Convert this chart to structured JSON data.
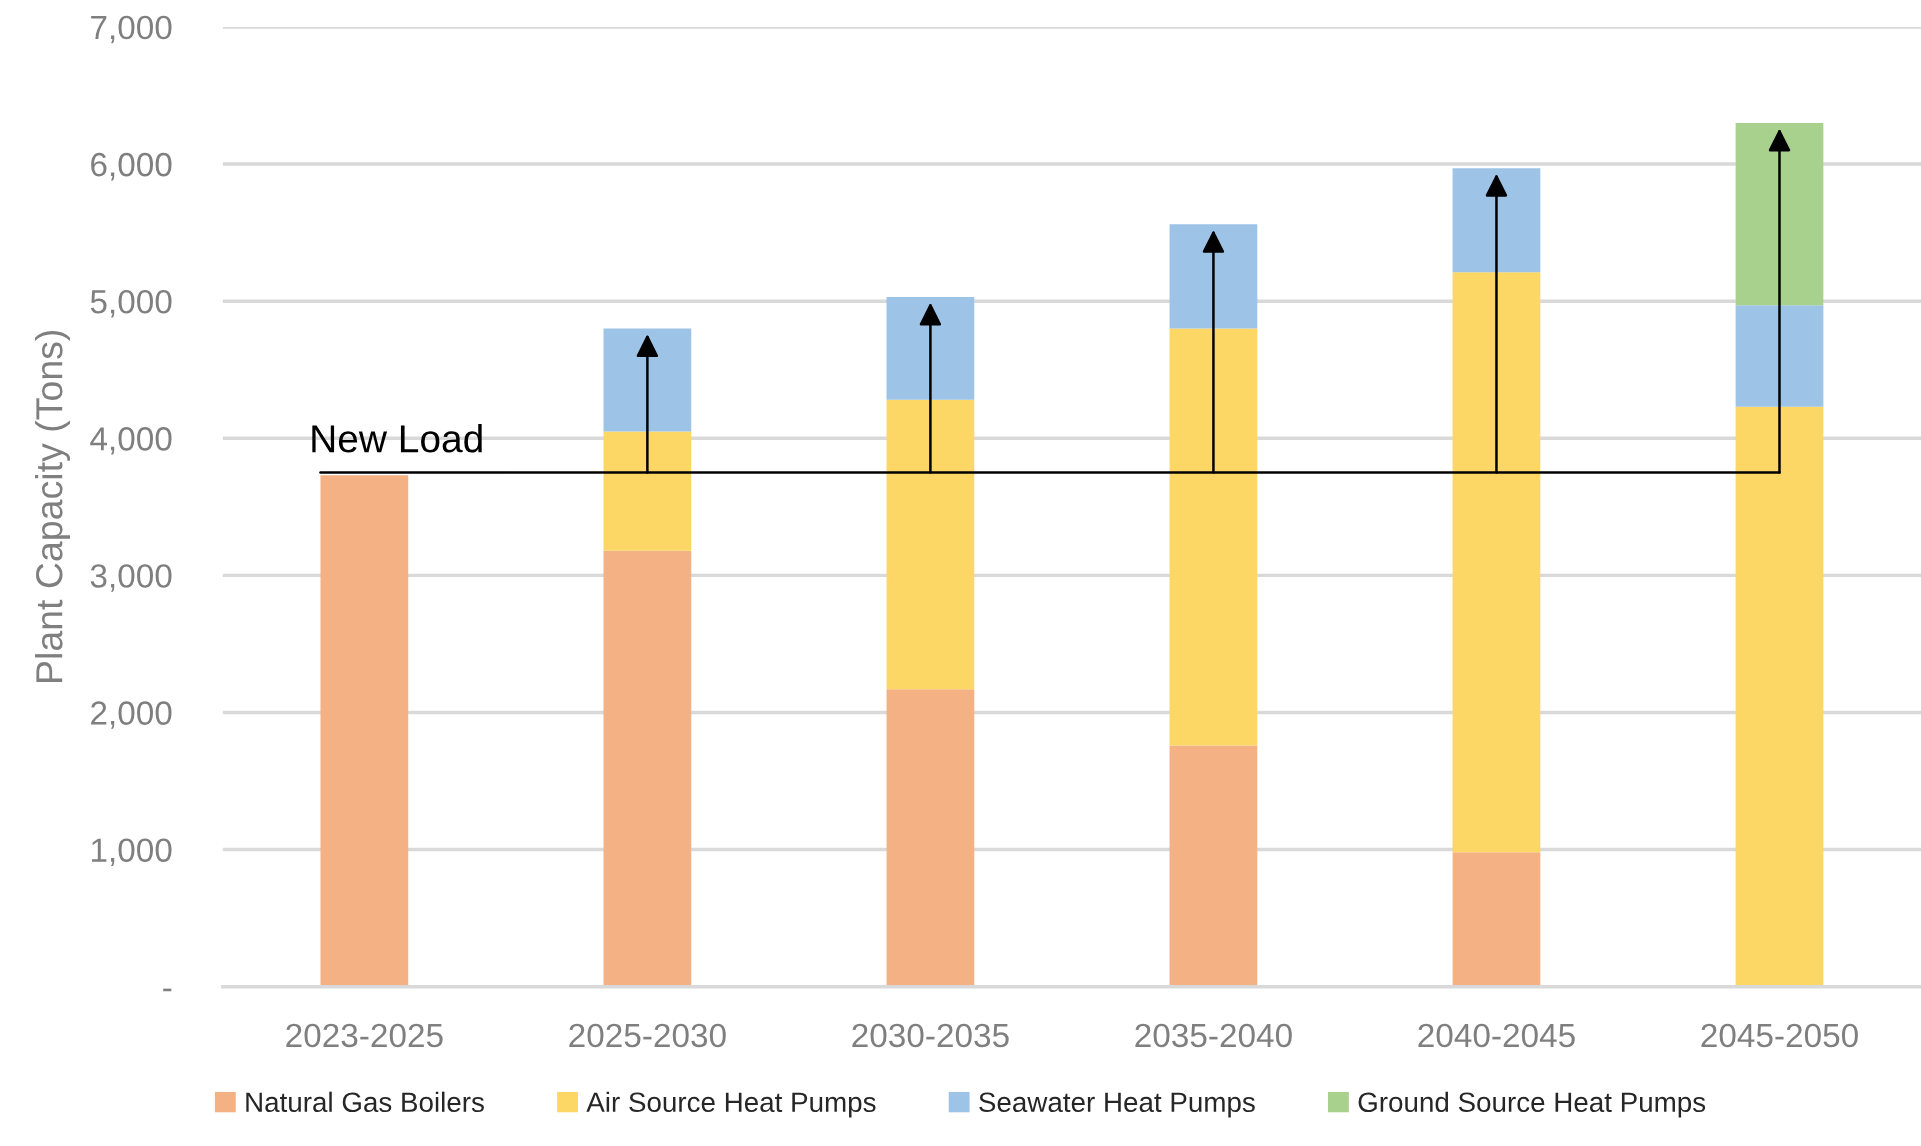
{
  "chart_data": {
    "type": "bar",
    "stacked": true,
    "ylabel": "Plant Capacity (Tons)",
    "categories": [
      "2023-2025",
      "2025-2030",
      "2030-2035",
      "2035-2040",
      "2040-2045",
      "2045-2050"
    ],
    "series": [
      {
        "name": "Natural Gas Boilers",
        "color": "#f4b183",
        "values": [
          3730,
          3180,
          2170,
          1760,
          980,
          null
        ]
      },
      {
        "name": "Air Source Heat Pumps",
        "color": "#fdd766",
        "values": [
          null,
          870,
          2110,
          3040,
          4230,
          4230
        ]
      },
      {
        "name": "Seawater Heat Pumps",
        "color": "#9dc3e6",
        "values": [
          null,
          750,
          750,
          760,
          760,
          740
        ]
      },
      {
        "name": "Ground Source Heat Pumps",
        "color": "#a9d18e",
        "values": [
          null,
          null,
          null,
          null,
          null,
          1330
        ]
      }
    ],
    "ylim": [
      0,
      7000
    ],
    "yticks": [
      {
        "value": 0,
        "label": "-"
      },
      {
        "value": 1000,
        "label": "1,000"
      },
      {
        "value": 2000,
        "label": "2,000"
      },
      {
        "value": 3000,
        "label": "3,000"
      },
      {
        "value": 4000,
        "label": "4,000"
      },
      {
        "value": 5000,
        "label": "5,000"
      },
      {
        "value": 6000,
        "label": "6,000"
      },
      {
        "value": 7000,
        "label": "7,000"
      }
    ],
    "grid": "y",
    "legend": "bottom",
    "ref_lines": [
      {
        "axis": "y",
        "value": 3750,
        "label": "New Load",
        "color": "#000000"
      }
    ]
  }
}
